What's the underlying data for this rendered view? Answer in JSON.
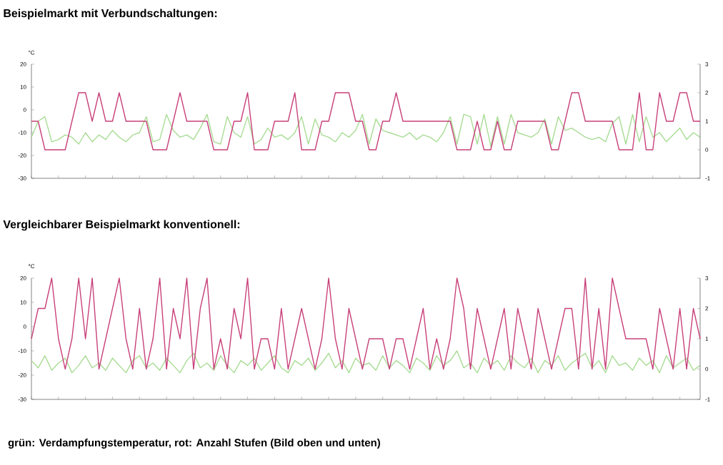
{
  "chart_data": [
    {
      "type": "line",
      "title": "Beispielmarkt mit Verbundschaltungen:",
      "ylabel": "°C",
      "categories": [
        null,
        null,
        null,
        null,
        null,
        null,
        null,
        null,
        null,
        null,
        null,
        null,
        null,
        null,
        null,
        null,
        null,
        null,
        null,
        null,
        null,
        null,
        null,
        null,
        null,
        null,
        null,
        null,
        null,
        null,
        null,
        null,
        null,
        null,
        null,
        null,
        null,
        null,
        null,
        null,
        null,
        null,
        null,
        null,
        null,
        null,
        null,
        null,
        null,
        null,
        null,
        null,
        null,
        null,
        null,
        null,
        null,
        null,
        null,
        null,
        null,
        null,
        null,
        null,
        null,
        null,
        null,
        null,
        null,
        null,
        null,
        null,
        null,
        null,
        null,
        null,
        null,
        null,
        null,
        null,
        null,
        null,
        null,
        null,
        null,
        null,
        null,
        null,
        null,
        null,
        null,
        null,
        null,
        null,
        null,
        null,
        null,
        null,
        null,
        null
      ],
      "series": [
        {
          "color": "#a8dc94",
          "axis": "y",
          "values": [
            -12,
            -5,
            -3,
            -14,
            -13,
            -11,
            -12,
            -15,
            -10,
            -14,
            -11,
            -13,
            -9,
            -12,
            -14,
            -11,
            -10,
            -3,
            -14,
            -13,
            -2,
            -9,
            -12,
            -11,
            -13,
            -8,
            -2,
            -14,
            -15,
            -3,
            -10,
            -12,
            -3,
            -15,
            -13,
            -8,
            -12,
            -11,
            -13,
            -10,
            -3,
            -15,
            -4,
            -11,
            -12,
            -14,
            -10,
            -12,
            -9,
            -2,
            -15,
            -4,
            -9,
            -10,
            -11,
            -12,
            -10,
            -13,
            -11,
            -12,
            -14,
            -10,
            -3,
            -15,
            -2,
            -3,
            -15,
            -2,
            -16,
            -3,
            -15,
            -2,
            -10,
            -11,
            -12,
            -10,
            -4,
            -15,
            -3,
            -9,
            -8,
            -10,
            -12,
            -13,
            -12,
            -14,
            -6,
            -3,
            -15,
            -2,
            -14,
            -3,
            -12,
            -10,
            -14,
            -11,
            -8,
            -13,
            -10,
            -12
          ]
        },
        {
          "color": "#c8407a",
          "axis": "y2",
          "values": [
            1,
            1,
            0,
            0,
            0,
            0,
            1,
            2,
            2,
            1,
            2,
            1,
            1,
            2,
            1,
            1,
            1,
            1,
            0,
            0,
            0,
            1,
            2,
            1,
            1,
            1,
            1,
            0,
            0,
            0,
            1,
            1,
            2,
            0,
            0,
            0,
            1,
            1,
            1,
            2,
            0,
            0,
            0,
            1,
            1,
            2,
            2,
            2,
            1,
            1,
            0,
            0,
            1,
            1,
            2,
            1,
            1,
            1,
            1,
            1,
            1,
            1,
            1,
            0,
            0,
            0,
            1,
            0,
            0,
            1,
            0,
            0,
            1,
            1,
            1,
            1,
            1,
            0,
            0,
            1,
            2,
            2,
            1,
            1,
            1,
            1,
            1,
            0,
            0,
            0,
            2,
            0,
            0,
            2,
            1,
            1,
            2,
            2,
            1,
            1
          ]
        }
      ],
      "ylim": [
        -30,
        20
      ],
      "yticks": [
        -30,
        -20,
        -10,
        0,
        10,
        20
      ],
      "y2lim": [
        -1,
        3
      ],
      "y2ticks": [
        -1,
        0,
        1,
        2,
        3
      ]
    },
    {
      "type": "line",
      "title": "Vergleichbarer Beispielmarkt konventionell:",
      "ylabel": "°C",
      "categories": [
        null,
        null,
        null,
        null,
        null,
        null,
        null,
        null,
        null,
        null,
        null,
        null,
        null,
        null,
        null,
        null,
        null,
        null,
        null,
        null,
        null,
        null,
        null,
        null,
        null,
        null,
        null,
        null,
        null,
        null,
        null,
        null,
        null,
        null,
        null,
        null,
        null,
        null,
        null,
        null,
        null,
        null,
        null,
        null,
        null,
        null,
        null,
        null,
        null,
        null,
        null,
        null,
        null,
        null,
        null,
        null,
        null,
        null,
        null,
        null,
        null,
        null,
        null,
        null,
        null,
        null,
        null,
        null,
        null,
        null,
        null,
        null,
        null,
        null,
        null,
        null,
        null,
        null,
        null,
        null,
        null,
        null,
        null,
        null,
        null,
        null,
        null,
        null,
        null,
        null,
        null,
        null,
        null,
        null,
        null,
        null,
        null,
        null,
        null,
        null
      ],
      "series": [
        {
          "color": "#a8dc94",
          "axis": "y",
          "values": [
            -14,
            -17,
            -12,
            -18,
            -15,
            -13,
            -19,
            -16,
            -12,
            -17,
            -15,
            -18,
            -13,
            -16,
            -19,
            -14,
            -12,
            -17,
            -15,
            -18,
            -13,
            -16,
            -19,
            -14,
            -11,
            -17,
            -15,
            -18,
            -12,
            -16,
            -19,
            -14,
            -16,
            -13,
            -18,
            -15,
            -12,
            -17,
            -19,
            -14,
            -16,
            -13,
            -18,
            -15,
            -11,
            -17,
            -14,
            -19,
            -13,
            -16,
            -15,
            -18,
            -12,
            -17,
            -14,
            -16,
            -19,
            -13,
            -15,
            -18,
            -12,
            -16,
            -14,
            -10,
            -17,
            -15,
            -19,
            -13,
            -16,
            -14,
            -18,
            -12,
            -15,
            -17,
            -13,
            -19,
            -14,
            -16,
            -12,
            -18,
            -15,
            -13,
            -11,
            -17,
            -14,
            -19,
            -12,
            -16,
            -15,
            -18,
            -13,
            -16,
            -14,
            -19,
            -12,
            -17,
            -15,
            -13,
            -18,
            -16
          ]
        },
        {
          "color": "#c8407a",
          "axis": "y2",
          "values": [
            1,
            2,
            2,
            3,
            1,
            0,
            1,
            3,
            1,
            3,
            0,
            1,
            2,
            3,
            1,
            0,
            2,
            0,
            1,
            3,
            0,
            2,
            1,
            3,
            0,
            2,
            3,
            0,
            1,
            0,
            2,
            1,
            3,
            0,
            1,
            1,
            0,
            2,
            0,
            1,
            2,
            1,
            0,
            1,
            3,
            1,
            0,
            2,
            1,
            0,
            1,
            1,
            1,
            0,
            1,
            1,
            0,
            1,
            2,
            0,
            1,
            0,
            1,
            3,
            2,
            0,
            2,
            1,
            0,
            1,
            2,
            0,
            2,
            1,
            0,
            2,
            1,
            0,
            1,
            2,
            2,
            0,
            3,
            0,
            2,
            0,
            3,
            2,
            1,
            1,
            1,
            1,
            0,
            2,
            1,
            0,
            2,
            0,
            2,
            1
          ]
        }
      ],
      "ylim": [
        -30,
        20
      ],
      "yticks": [
        -30,
        -20,
        -10,
        0,
        10,
        20
      ],
      "y2lim": [
        -1,
        3
      ],
      "y2ticks": [
        -1,
        0,
        1,
        2,
        3
      ],
      "annotations": [
        "grün: Verdampfungstemperatur, rot: Anzahl Stufen (Bild oben und unten)"
      ]
    }
  ]
}
